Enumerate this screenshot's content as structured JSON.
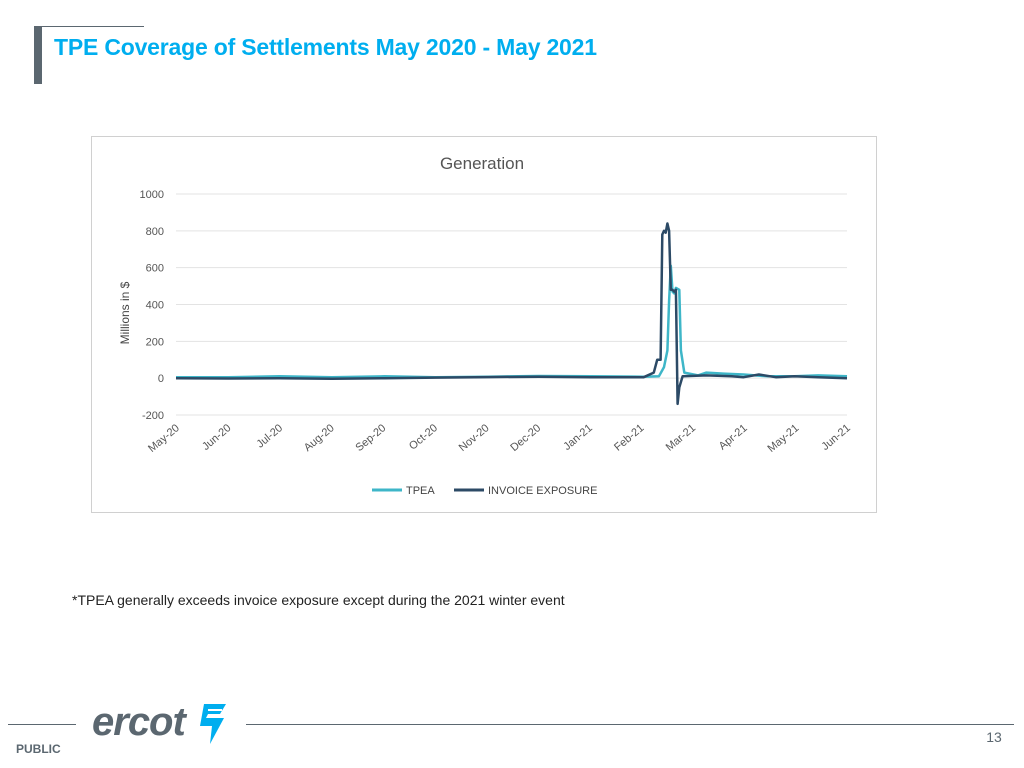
{
  "page": {
    "title": "TPE Coverage of Settlements May 2020 - May 2021",
    "note": "*TPEA generally exceeds invoice exposure except during the 2021 winter event",
    "footer_label": "PUBLIC",
    "logo_text": "ercot",
    "logo_icon": "lightning-bolt-icon",
    "page_number": "13"
  },
  "colors": {
    "title": "#00AEEF",
    "tpea": "#3EB6C8",
    "invoice_exposure": "#2C4A66",
    "accent_gray": "#5B6770"
  },
  "chart_data": {
    "type": "line",
    "title": "Generation",
    "xlabel": "",
    "ylabel": "Millions in $",
    "ylim": [
      -200,
      1000
    ],
    "yticks": [
      -200,
      0,
      200,
      400,
      600,
      800,
      1000
    ],
    "grid": true,
    "legend": "bottom",
    "xlim": [
      "2020-05-01",
      "2021-06-01"
    ],
    "xticks": [
      "May-20",
      "Jun-20",
      "Jul-20",
      "Aug-20",
      "Sep-20",
      "Oct-20",
      "Nov-20",
      "Dec-20",
      "Jan-21",
      "Feb-21",
      "Mar-21",
      "Apr-21",
      "May-21",
      "Jun-21"
    ],
    "series": [
      {
        "name": "TPEA",
        "points": [
          [
            "2020-05-01",
            5
          ],
          [
            "2020-06-01",
            5
          ],
          [
            "2020-07-01",
            10
          ],
          [
            "2020-08-01",
            5
          ],
          [
            "2020-09-01",
            10
          ],
          [
            "2020-10-01",
            5
          ],
          [
            "2020-11-01",
            8
          ],
          [
            "2020-12-01",
            12
          ],
          [
            "2021-01-01",
            10
          ],
          [
            "2021-02-01",
            8
          ],
          [
            "2021-02-10",
            10
          ],
          [
            "2021-02-13",
            60
          ],
          [
            "2021-02-15",
            150
          ],
          [
            "2021-02-16",
            420
          ],
          [
            "2021-02-17",
            610
          ],
          [
            "2021-02-18",
            470
          ],
          [
            "2021-02-19",
            460
          ],
          [
            "2021-02-20",
            490
          ],
          [
            "2021-02-22",
            480
          ],
          [
            "2021-02-23",
            150
          ],
          [
            "2021-02-25",
            30
          ],
          [
            "2021-03-05",
            15
          ],
          [
            "2021-03-10",
            30
          ],
          [
            "2021-03-20",
            25
          ],
          [
            "2021-04-01",
            20
          ],
          [
            "2021-04-15",
            10
          ],
          [
            "2021-05-01",
            10
          ],
          [
            "2021-05-15",
            15
          ],
          [
            "2021-06-01",
            10
          ]
        ]
      },
      {
        "name": "INVOICE EXPOSURE",
        "points": [
          [
            "2020-05-01",
            0
          ],
          [
            "2020-06-01",
            -2
          ],
          [
            "2020-07-01",
            0
          ],
          [
            "2020-08-01",
            -3
          ],
          [
            "2020-09-01",
            0
          ],
          [
            "2020-10-01",
            3
          ],
          [
            "2020-11-01",
            6
          ],
          [
            "2020-12-01",
            8
          ],
          [
            "2021-01-01",
            5
          ],
          [
            "2021-02-01",
            5
          ],
          [
            "2021-02-07",
            30
          ],
          [
            "2021-02-09",
            100
          ],
          [
            "2021-02-11",
            100
          ],
          [
            "2021-02-12",
            780
          ],
          [
            "2021-02-13",
            800
          ],
          [
            "2021-02-14",
            790
          ],
          [
            "2021-02-15",
            840
          ],
          [
            "2021-02-16",
            800
          ],
          [
            "2021-02-17",
            480
          ],
          [
            "2021-02-18",
            480
          ],
          [
            "2021-02-19",
            470
          ],
          [
            "2021-02-20",
            480
          ],
          [
            "2021-02-21",
            -140
          ],
          [
            "2021-02-22",
            -50
          ],
          [
            "2021-02-24",
            10
          ],
          [
            "2021-03-10",
            15
          ],
          [
            "2021-03-25",
            10
          ],
          [
            "2021-04-01",
            5
          ],
          [
            "2021-04-10",
            20
          ],
          [
            "2021-04-20",
            5
          ],
          [
            "2021-05-01",
            10
          ],
          [
            "2021-05-15",
            5
          ],
          [
            "2021-06-01",
            0
          ]
        ]
      }
    ]
  }
}
